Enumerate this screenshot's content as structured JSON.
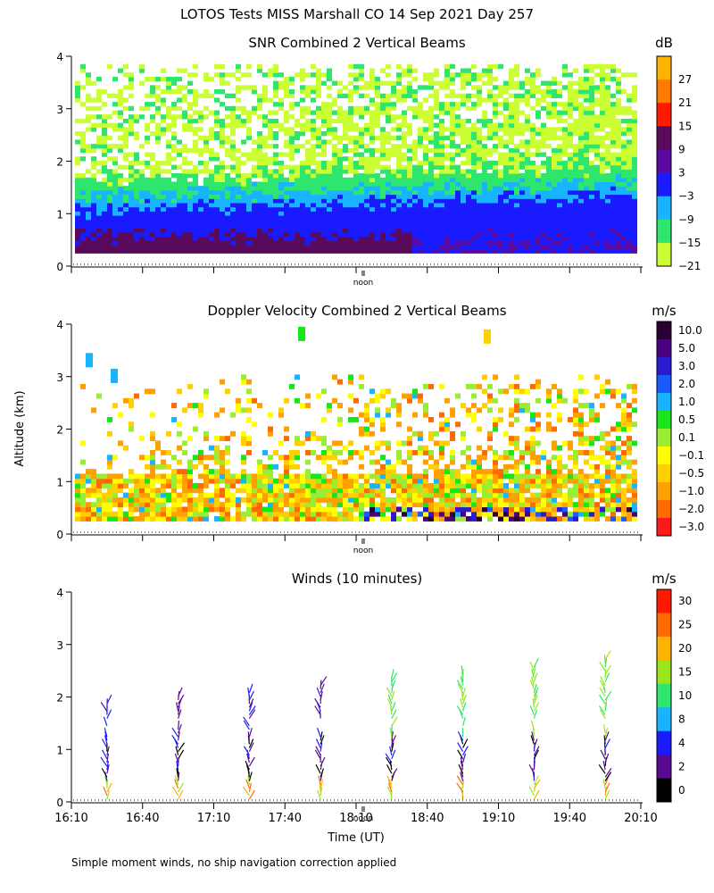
{
  "title": "LOTOS Tests MISS Marshall CO  14 Sep 2021 Day 257",
  "ylabel": "Altitude (km)",
  "xlabel": "Time (UT)",
  "footnote": "Simple moment winds, no ship navigation correction applied",
  "noon_label": "noon",
  "chart_data": [
    {
      "type": "heatmap",
      "id": "snr",
      "title": "SNR Combined 2 Vertical Beams",
      "units": "dB",
      "ylim": [
        0,
        4
      ],
      "yticks": [
        0,
        1,
        2,
        3,
        4
      ],
      "ylabel": "",
      "colorbar_labels": [
        "27",
        "21",
        "15",
        "9",
        "3",
        "−3",
        "−9",
        "−15",
        "−21"
      ],
      "colorbar_colors": [
        "#ffb300",
        "#ff7a00",
        "#ff1a00",
        "#5a0a5a",
        "#5a0aa0",
        "#1a1aff",
        "#19b4ff",
        "#2ee66e",
        "#ccff33"
      ],
      "description_bands": [
        {
          "alt_from": 0.25,
          "alt_to": 0.6,
          "value_db": 9
        },
        {
          "alt_from": 0.6,
          "alt_to": 1.0,
          "value_db": 3
        },
        {
          "alt_from": 1.0,
          "alt_to": 1.5,
          "value_db": -12
        },
        {
          "alt_from": 1.5,
          "alt_to": 3.8,
          "value_db": -21
        }
      ]
    },
    {
      "type": "heatmap",
      "id": "doppler",
      "title": "Doppler Velocity Combined 2 Vertical Beams",
      "units": "m/s",
      "ylim": [
        0,
        4
      ],
      "yticks": [
        0,
        1,
        2,
        3,
        4
      ],
      "colorbar_labels": [
        "10.0",
        "5.0",
        "3.0",
        "2.0",
        "1.0",
        "0.5",
        "0.1",
        "−0.1",
        "−0.5",
        "−1.0",
        "−2.0",
        "−3.0"
      ],
      "colorbar_colors": [
        "#2a0030",
        "#4a0080",
        "#2a1ad0",
        "#1a5aff",
        "#19b4ff",
        "#19e619",
        "#99ee33",
        "#ffff00",
        "#ffd000",
        "#ffa000",
        "#ff6a00",
        "#ff1a1a"
      ]
    },
    {
      "type": "scatter",
      "id": "winds",
      "title": "Winds (10 minutes)",
      "units": "m/s",
      "ylim": [
        0,
        4
      ],
      "yticks": [
        0,
        1,
        2,
        3,
        4
      ],
      "x_tick_labels": [
        "16:10",
        "16:40",
        "17:10",
        "17:40",
        "18:10",
        "18:40",
        "19:10",
        "19:40",
        "20:10"
      ],
      "x_range_minutes": [
        970,
        1210
      ],
      "colorbar_labels": [
        "30",
        "25",
        "20",
        "15",
        "10",
        "8",
        "4",
        "2",
        "0"
      ],
      "colorbar_colors": [
        "#ff1a00",
        "#ff6a00",
        "#ffb300",
        "#99e619",
        "#2ee66e",
        "#19b4ff",
        "#1a1aff",
        "#5a0a90",
        "#000000"
      ],
      "profile_times_minutes": [
        985,
        1015,
        1045,
        1075,
        1105,
        1135,
        1165,
        1195
      ]
    }
  ]
}
